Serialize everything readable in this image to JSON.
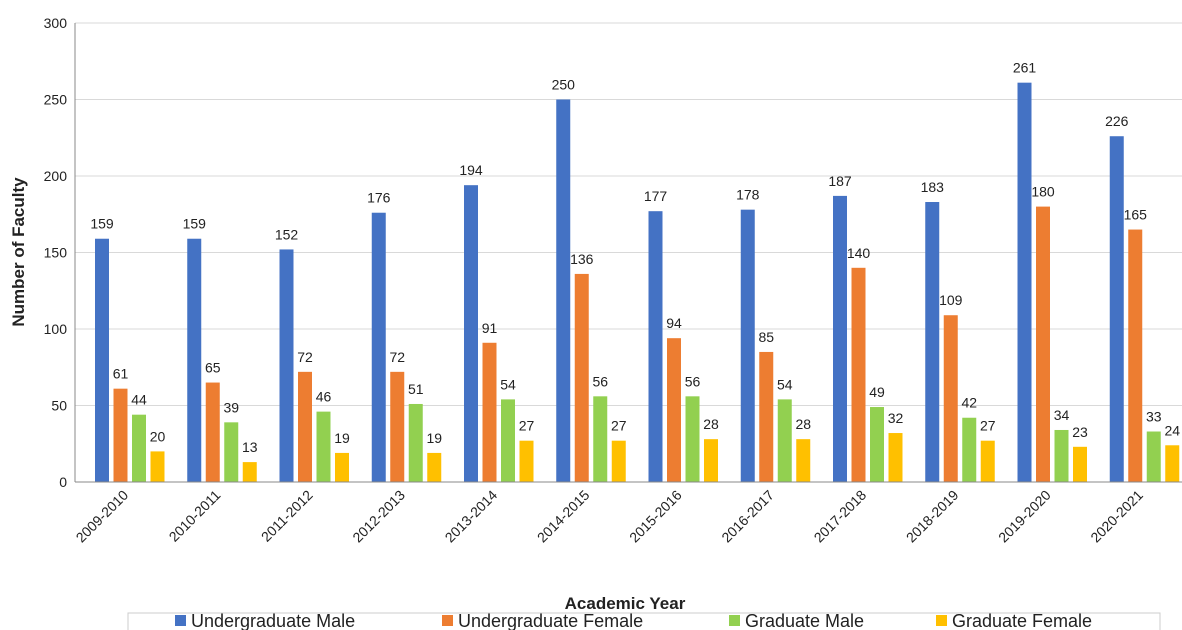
{
  "chart_data": {
    "type": "bar",
    "x_label": "Academic Year",
    "y_label": "Number of Faculty",
    "categories": [
      "2009-2010",
      "2010-2011",
      "2011-2012",
      "2012-2013",
      "2013-2014",
      "2014-2015",
      "2015-2016",
      "2016-2017",
      "2017-2018",
      "2018-2019",
      "2019-2020",
      "2020-2021"
    ],
    "series": [
      {
        "name": "Undergraduate Male",
        "color": "#4472c4",
        "values": [
          159,
          159,
          152,
          176,
          194,
          250,
          177,
          178,
          187,
          183,
          261,
          226
        ]
      },
      {
        "name": "Undergraduate Female",
        "color": "#ed7d31",
        "values": [
          61,
          65,
          72,
          72,
          91,
          136,
          94,
          85,
          140,
          109,
          180,
          165
        ]
      },
      {
        "name": "Graduate Male",
        "color": "#92d050",
        "values": [
          44,
          39,
          46,
          51,
          54,
          56,
          56,
          54,
          49,
          42,
          34,
          33
        ]
      },
      {
        "name": "Graduate Female",
        "color": "#ffc000",
        "values": [
          20,
          13,
          19,
          19,
          27,
          27,
          28,
          28,
          32,
          27,
          23,
          24
        ]
      }
    ],
    "ylim": [
      0,
      300
    ],
    "yticks": [
      0,
      50,
      100,
      150,
      200,
      250,
      300
    ],
    "grid": true,
    "legend": "bottom"
  }
}
